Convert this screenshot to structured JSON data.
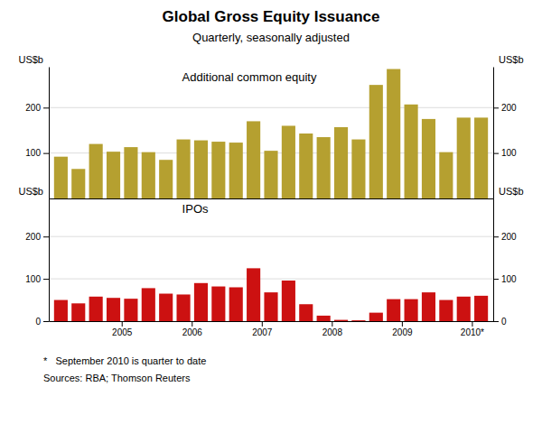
{
  "title": "Global Gross Equity Issuance",
  "subtitle": "Quarterly, seasonally adjusted",
  "annotations": [
    "*   September 2010 is quarter to date",
    "Sources: RBA; Thomson Reuters"
  ],
  "chart_data": [
    {
      "type": "bar",
      "title": "Additional common equity",
      "ylabel": "US$b",
      "categories": [
        null,
        null,
        null,
        "2005",
        null,
        null,
        null,
        "2006",
        null,
        null,
        null,
        "2007",
        null,
        null,
        null,
        "2008",
        null,
        null,
        null,
        "2009",
        null,
        null,
        null,
        "2010*",
        null
      ],
      "values": [
        92,
        65,
        120,
        103,
        113,
        102,
        85,
        130,
        128,
        125,
        123,
        170,
        105,
        160,
        143,
        135,
        157,
        130,
        250,
        285,
        207,
        175,
        102,
        178,
        178
      ],
      "color": "#b5a030",
      "ylim": [
        0,
        290
      ],
      "yticks": [
        100,
        200
      ],
      "grid": true,
      "tick_labels": "y"
    },
    {
      "type": "bar",
      "title": "IPOs",
      "ylabel": "US$b",
      "categories": [
        null,
        null,
        null,
        "2005",
        null,
        null,
        null,
        "2006",
        null,
        null,
        null,
        "2007",
        null,
        null,
        null,
        "2008",
        null,
        null,
        null,
        "2009",
        null,
        null,
        null,
        "2010*",
        null
      ],
      "values": [
        50,
        42,
        58,
        55,
        53,
        78,
        65,
        63,
        90,
        82,
        80,
        125,
        68,
        96,
        40,
        13,
        3,
        2,
        20,
        52,
        52,
        68,
        50,
        58,
        60
      ],
      "color": "#cc1111",
      "ylim": [
        0,
        290
      ],
      "yticks": [
        0,
        100,
        200
      ],
      "grid": true
    }
  ]
}
